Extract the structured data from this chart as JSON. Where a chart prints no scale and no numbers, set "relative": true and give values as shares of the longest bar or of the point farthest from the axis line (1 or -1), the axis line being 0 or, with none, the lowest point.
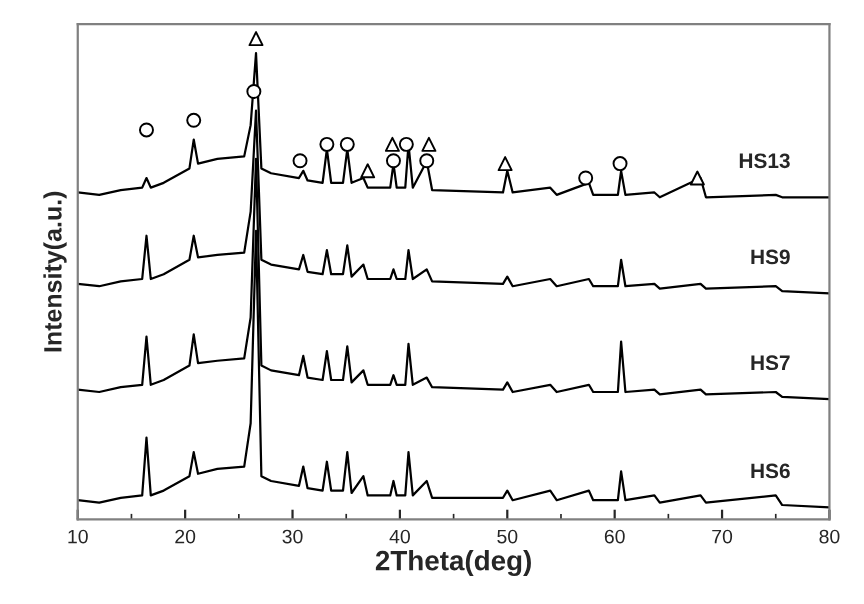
{
  "chart_data": {
    "type": "line",
    "relative": true,
    "xlabel": "2Theta(deg)",
    "ylabel": "Intensity(a.u.)",
    "xlim": [
      10,
      80
    ],
    "xticks": [
      10,
      20,
      30,
      40,
      50,
      60,
      70,
      80
    ],
    "grid": false,
    "legend": false,
    "marker": "none",
    "line_style": "solid",
    "x": [
      10,
      12,
      14,
      16,
      16.4,
      16.8,
      18,
      20.4,
      20.8,
      21.2,
      23,
      25.5,
      26.1,
      26.6,
      27.1,
      28,
      30.6,
      31,
      31.4,
      32.8,
      33.2,
      33.6,
      34.7,
      35.1,
      35.5,
      36.6,
      37,
      39.1,
      39.4,
      39.7,
      40.5,
      40.8,
      41.2,
      42.5,
      43,
      49.6,
      50,
      50.5,
      54,
      54.6,
      57.6,
      58,
      60.3,
      60.6,
      61,
      63.7,
      64.2,
      68,
      68.5,
      75,
      75.6,
      80
    ],
    "series": [
      {
        "name": "HS6",
        "color": "#000000",
        "values": [
          0.04,
          0.035,
          0.045,
          0.05,
          0.17,
          0.05,
          0.06,
          0.09,
          0.14,
          0.095,
          0.105,
          0.11,
          0.2,
          0.6,
          0.09,
          0.08,
          0.07,
          0.11,
          0.065,
          0.06,
          0.12,
          0.06,
          0.06,
          0.14,
          0.055,
          0.09,
          0.05,
          0.05,
          0.08,
          0.05,
          0.05,
          0.14,
          0.05,
          0.08,
          0.045,
          0.045,
          0.06,
          0.04,
          0.06,
          0.04,
          0.06,
          0.04,
          0.04,
          0.1,
          0.04,
          0.05,
          0.035,
          0.05,
          0.035,
          0.05,
          0.03,
          0.025
        ]
      },
      {
        "name": "HS7",
        "color": "#000000",
        "values": [
          0.27,
          0.265,
          0.275,
          0.28,
          0.38,
          0.28,
          0.29,
          0.32,
          0.385,
          0.325,
          0.33,
          0.335,
          0.42,
          0.75,
          0.32,
          0.31,
          0.3,
          0.34,
          0.295,
          0.29,
          0.35,
          0.29,
          0.29,
          0.36,
          0.285,
          0.31,
          0.28,
          0.28,
          0.3,
          0.28,
          0.28,
          0.365,
          0.28,
          0.295,
          0.275,
          0.27,
          0.285,
          0.265,
          0.28,
          0.265,
          0.28,
          0.265,
          0.265,
          0.37,
          0.265,
          0.27,
          0.26,
          0.27,
          0.26,
          0.265,
          0.255,
          0.25
        ]
      },
      {
        "name": "HS9",
        "color": "#000000",
        "values": [
          0.49,
          0.485,
          0.495,
          0.5,
          0.59,
          0.5,
          0.51,
          0.54,
          0.59,
          0.545,
          0.55,
          0.555,
          0.64,
          0.85,
          0.54,
          0.53,
          0.52,
          0.55,
          0.515,
          0.51,
          0.56,
          0.51,
          0.51,
          0.57,
          0.505,
          0.53,
          0.5,
          0.5,
          0.52,
          0.5,
          0.5,
          0.56,
          0.5,
          0.52,
          0.495,
          0.49,
          0.505,
          0.485,
          0.5,
          0.485,
          0.5,
          0.485,
          0.485,
          0.54,
          0.485,
          0.49,
          0.48,
          0.49,
          0.48,
          0.485,
          0.475,
          0.47
        ]
      },
      {
        "name": "HS13",
        "color": "#000000",
        "values": [
          0.68,
          0.675,
          0.685,
          0.69,
          0.71,
          0.69,
          0.7,
          0.73,
          0.79,
          0.74,
          0.75,
          0.755,
          0.82,
          0.97,
          0.73,
          0.72,
          0.71,
          0.725,
          0.705,
          0.7,
          0.77,
          0.7,
          0.7,
          0.77,
          0.7,
          0.71,
          0.69,
          0.69,
          0.74,
          0.69,
          0.69,
          0.78,
          0.69,
          0.745,
          0.685,
          0.68,
          0.725,
          0.68,
          0.69,
          0.675,
          0.7,
          0.675,
          0.675,
          0.725,
          0.675,
          0.68,
          0.67,
          0.71,
          0.67,
          0.675,
          0.67,
          0.67
        ]
      },
      {
        "type": "scatter",
        "marker": "circle",
        "color": "#000000",
        "x": [
          16.4,
          20.8,
          26.4,
          30.7,
          33.2,
          35.1,
          39.4,
          40.6,
          42.5,
          57.3,
          60.5
        ],
        "values": [
          0.81,
          0.83,
          0.89,
          0.746,
          0.78,
          0.78,
          0.746,
          0.78,
          0.746,
          0.71,
          0.74
        ]
      },
      {
        "type": "scatter",
        "marker": "triangle",
        "color": "#000000",
        "x": [
          26.6,
          37.0,
          39.3,
          42.7,
          49.8,
          67.7
        ],
        "values": [
          1.0,
          0.725,
          0.78,
          0.78,
          0.74,
          0.71
        ]
      }
    ]
  }
}
